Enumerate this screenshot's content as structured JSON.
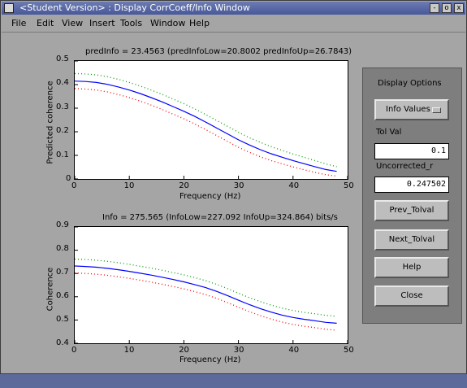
{
  "window": {
    "title": "<Student Version> : Display CorrCoeff/Info Window",
    "controls": [
      "-",
      "o",
      "x"
    ]
  },
  "menu": [
    "File",
    "Edit",
    "View",
    "Insert",
    "Tools",
    "Window",
    "Help"
  ],
  "plots": {
    "top": {
      "title": "predInfo = 23.4563 (predInfoLow=20.8002 predInfoUp=26.7843)",
      "xlabel": "Frequency (Hz)",
      "ylabel": "Predicted coherence",
      "xticks": [
        "0",
        "10",
        "20",
        "30",
        "40",
        "50"
      ],
      "yticks": [
        "0",
        "0.1",
        "0.2",
        "0.3",
        "0.4",
        "0.5"
      ]
    },
    "bottom": {
      "title": "Info = 275.565 (InfoLow=227.092 InfoUp=324.864) bits/s",
      "xlabel": "Frequency (Hz)",
      "ylabel": "Coherence",
      "xticks": [
        "0",
        "10",
        "20",
        "30",
        "40",
        "50"
      ],
      "yticks": [
        "0.4",
        "0.5",
        "0.6",
        "0.7",
        "0.8",
        "0.9"
      ]
    }
  },
  "chart_data": [
    {
      "type": "line",
      "title": "predInfo = 23.4563 (predInfoLow=20.8002 predInfoUp=26.7843)",
      "xlabel": "Frequency (Hz)",
      "ylabel": "Predicted coherence",
      "xlim": [
        0,
        50
      ],
      "ylim": [
        0,
        0.5
      ],
      "grid": false,
      "x": [
        0,
        2,
        4,
        6,
        8,
        10,
        12,
        14,
        16,
        18,
        20,
        22,
        24,
        26,
        28,
        30,
        32,
        34,
        36,
        38,
        40,
        42,
        44,
        46,
        48
      ],
      "series": [
        {
          "color": "#0000ff",
          "style": "solid",
          "values": [
            0.415,
            0.413,
            0.409,
            0.401,
            0.39,
            0.377,
            0.362,
            0.345,
            0.327,
            0.307,
            0.287,
            0.265,
            0.241,
            0.216,
            0.191,
            0.166,
            0.144,
            0.124,
            0.107,
            0.092,
            0.078,
            0.065,
            0.052,
            0.04,
            0.032
          ]
        },
        {
          "color": "#00a000",
          "style": "dotted",
          "values": [
            0.447,
            0.445,
            0.441,
            0.433,
            0.422,
            0.409,
            0.394,
            0.377,
            0.359,
            0.339,
            0.319,
            0.297,
            0.273,
            0.248,
            0.223,
            0.198,
            0.175,
            0.155,
            0.137,
            0.121,
            0.106,
            0.092,
            0.078,
            0.064,
            0.052
          ]
        },
        {
          "color": "#ff0000",
          "style": "dotted",
          "values": [
            0.383,
            0.381,
            0.377,
            0.369,
            0.358,
            0.345,
            0.33,
            0.313,
            0.295,
            0.275,
            0.255,
            0.233,
            0.209,
            0.184,
            0.159,
            0.134,
            0.113,
            0.094,
            0.078,
            0.064,
            0.051,
            0.039,
            0.028,
            0.018,
            0.012
          ]
        }
      ]
    },
    {
      "type": "line",
      "title": "Info = 275.565 (InfoLow=227.092 InfoUp=324.864) bits/s",
      "xlabel": "Frequency (Hz)",
      "ylabel": "Coherence",
      "xlim": [
        0,
        50
      ],
      "ylim": [
        0.4,
        0.9
      ],
      "grid": false,
      "x": [
        0,
        2,
        4,
        6,
        8,
        10,
        12,
        14,
        16,
        18,
        20,
        22,
        24,
        26,
        28,
        30,
        32,
        34,
        36,
        38,
        40,
        42,
        44,
        46,
        48
      ],
      "series": [
        {
          "color": "#0000ff",
          "style": "solid",
          "values": [
            0.732,
            0.73,
            0.727,
            0.722,
            0.716,
            0.709,
            0.701,
            0.693,
            0.684,
            0.674,
            0.664,
            0.652,
            0.639,
            0.623,
            0.605,
            0.585,
            0.566,
            0.549,
            0.534,
            0.521,
            0.511,
            0.503,
            0.497,
            0.49,
            0.486
          ]
        },
        {
          "color": "#00a000",
          "style": "dotted",
          "values": [
            0.762,
            0.76,
            0.757,
            0.752,
            0.746,
            0.739,
            0.731,
            0.723,
            0.714,
            0.704,
            0.694,
            0.682,
            0.669,
            0.653,
            0.635,
            0.615,
            0.596,
            0.579,
            0.564,
            0.551,
            0.541,
            0.533,
            0.527,
            0.52,
            0.516
          ]
        },
        {
          "color": "#ff0000",
          "style": "dotted",
          "values": [
            0.702,
            0.7,
            0.697,
            0.692,
            0.686,
            0.679,
            0.671,
            0.663,
            0.654,
            0.644,
            0.634,
            0.622,
            0.609,
            0.593,
            0.575,
            0.555,
            0.536,
            0.519,
            0.504,
            0.491,
            0.481,
            0.473,
            0.467,
            0.46,
            0.456
          ]
        }
      ]
    }
  ],
  "panel": {
    "title": "Display Options",
    "popup_value": "Info Values",
    "tol_label": "Tol Val",
    "tol_value": "0.1",
    "uncorrected_label": "Uncorrected_r",
    "uncorrected_value": "0.247502",
    "buttons": [
      "Prev_Tolval",
      "Next_Tolval",
      "Help",
      "Close"
    ]
  }
}
